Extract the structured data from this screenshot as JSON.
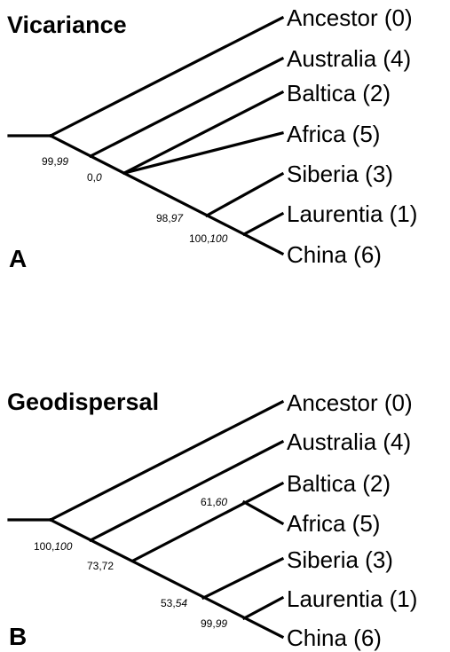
{
  "panels": [
    {
      "id": "A",
      "label": "A",
      "title": "Vicariance",
      "taxa": [
        "Ancestor (0)",
        "Australia (4)",
        "Baltica (2)",
        "Africa (5)",
        "Siberia (3)",
        "Laurentia (1)",
        "China (6)"
      ],
      "support": [
        {
          "plain": "99,",
          "italic": "99"
        },
        {
          "plain": "0,",
          "italic": "0"
        },
        {
          "plain": "98,",
          "italic": "97"
        },
        {
          "plain": "100,",
          "italic": "100"
        }
      ]
    },
    {
      "id": "B",
      "label": "B",
      "title": "Geodispersal",
      "taxa": [
        "Ancestor (0)",
        "Australia (4)",
        "Baltica (2)",
        "Africa (5)",
        "Siberia (3)",
        "Laurentia (1)",
        "China (6)"
      ],
      "support": [
        {
          "plain": "100,",
          "italic": "100"
        },
        {
          "plain": "73,72",
          "italic": ""
        },
        {
          "plain": "61,",
          "italic": "60"
        },
        {
          "plain": "53,",
          "italic": "54"
        },
        {
          "plain": "99,",
          "italic": "99"
        }
      ]
    }
  ]
}
